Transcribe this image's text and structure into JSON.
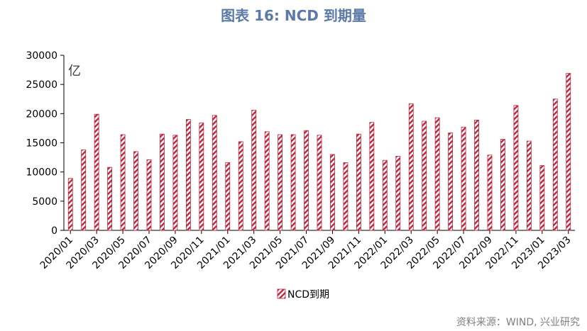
{
  "title": "图表 16: NCD 到期量",
  "source": "资料来源：WIND, 兴业研究",
  "colors": {
    "bar": "#c0243c",
    "title": "#5b7aa8",
    "axis": "#000000"
  },
  "chart_data": {
    "type": "bar",
    "unit_label": "亿",
    "ylim": [
      0,
      30000
    ],
    "yticks": [
      0,
      5000,
      10000,
      15000,
      20000,
      25000,
      30000
    ],
    "legend": {
      "label": "NCD到期",
      "position": "bottom-center"
    },
    "grid": false,
    "categories": [
      "2020/01",
      "2020/02",
      "2020/03",
      "2020/04",
      "2020/05",
      "2020/06",
      "2020/07",
      "2020/08",
      "2020/09",
      "2020/10",
      "2020/11",
      "2020/12",
      "2021/01",
      "2021/02",
      "2021/03",
      "2021/04",
      "2021/05",
      "2021/06",
      "2021/07",
      "2021/08",
      "2021/09",
      "2021/10",
      "2021/11",
      "2021/12",
      "2022/01",
      "2022/02",
      "2022/03",
      "2022/04",
      "2022/05",
      "2022/06",
      "2022/07",
      "2022/08",
      "2022/09",
      "2022/10",
      "2022/11",
      "2022/12",
      "2023/01",
      "2023/02",
      "2023/03"
    ],
    "xtick_labels": [
      "2020/01",
      "2020/03",
      "2020/05",
      "2020/07",
      "2020/09",
      "2020/11",
      "2021/01",
      "2021/03",
      "2021/05",
      "2021/07",
      "2021/09",
      "2021/11",
      "2022/01",
      "2022/03",
      "2022/05",
      "2022/07",
      "2022/09",
      "2022/11",
      "2023/01",
      "2023/03"
    ],
    "series": [
      {
        "name": "NCD到期",
        "values": [
          8900,
          13800,
          19900,
          10800,
          16400,
          13500,
          12100,
          16500,
          16300,
          19000,
          18400,
          19700,
          11600,
          15200,
          20600,
          16900,
          16400,
          16400,
          17100,
          16300,
          13000,
          11600,
          16500,
          18500,
          12000,
          12700,
          21700,
          18700,
          19300,
          16700,
          17700,
          18900,
          12900,
          15600,
          21400,
          15300,
          11100,
          22500,
          26900
        ]
      }
    ]
  }
}
